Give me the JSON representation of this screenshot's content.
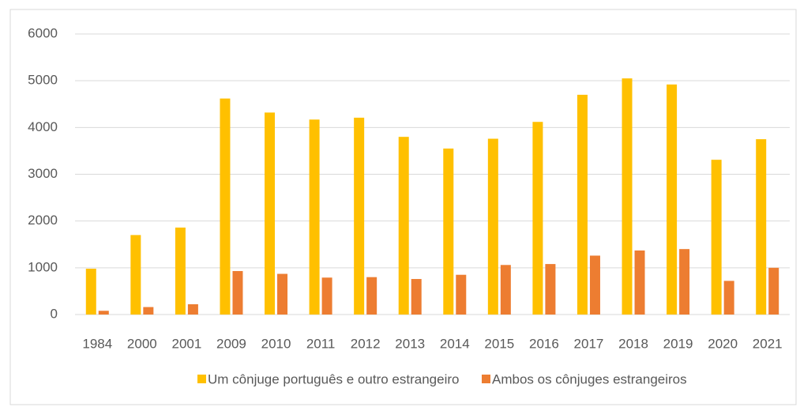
{
  "chart_data": {
    "type": "bar",
    "categories": [
      "1984",
      "2000",
      "2001",
      "2009",
      "2010",
      "2011",
      "2012",
      "2013",
      "2014",
      "2015",
      "2016",
      "2017",
      "2018",
      "2019",
      "2020",
      "2021"
    ],
    "series": [
      {
        "name": "Um cônjuge português e outro estrangeiro",
        "color": "#FFC000",
        "values": [
          980,
          1700,
          1860,
          4620,
          4320,
          4170,
          4210,
          3800,
          3550,
          3760,
          4120,
          4700,
          5050,
          4920,
          3310,
          3750
        ]
      },
      {
        "name": "Ambos os cônjuges estrangeiros",
        "color": "#ED7D31",
        "values": [
          80,
          160,
          220,
          930,
          870,
          790,
          800,
          760,
          850,
          1060,
          1080,
          1260,
          1370,
          1400,
          720,
          1000
        ]
      }
    ],
    "ylim": [
      0,
      6000
    ],
    "yticks": [
      0,
      1000,
      2000,
      3000,
      4000,
      5000,
      6000
    ],
    "grid": true,
    "legend": "bottom"
  }
}
